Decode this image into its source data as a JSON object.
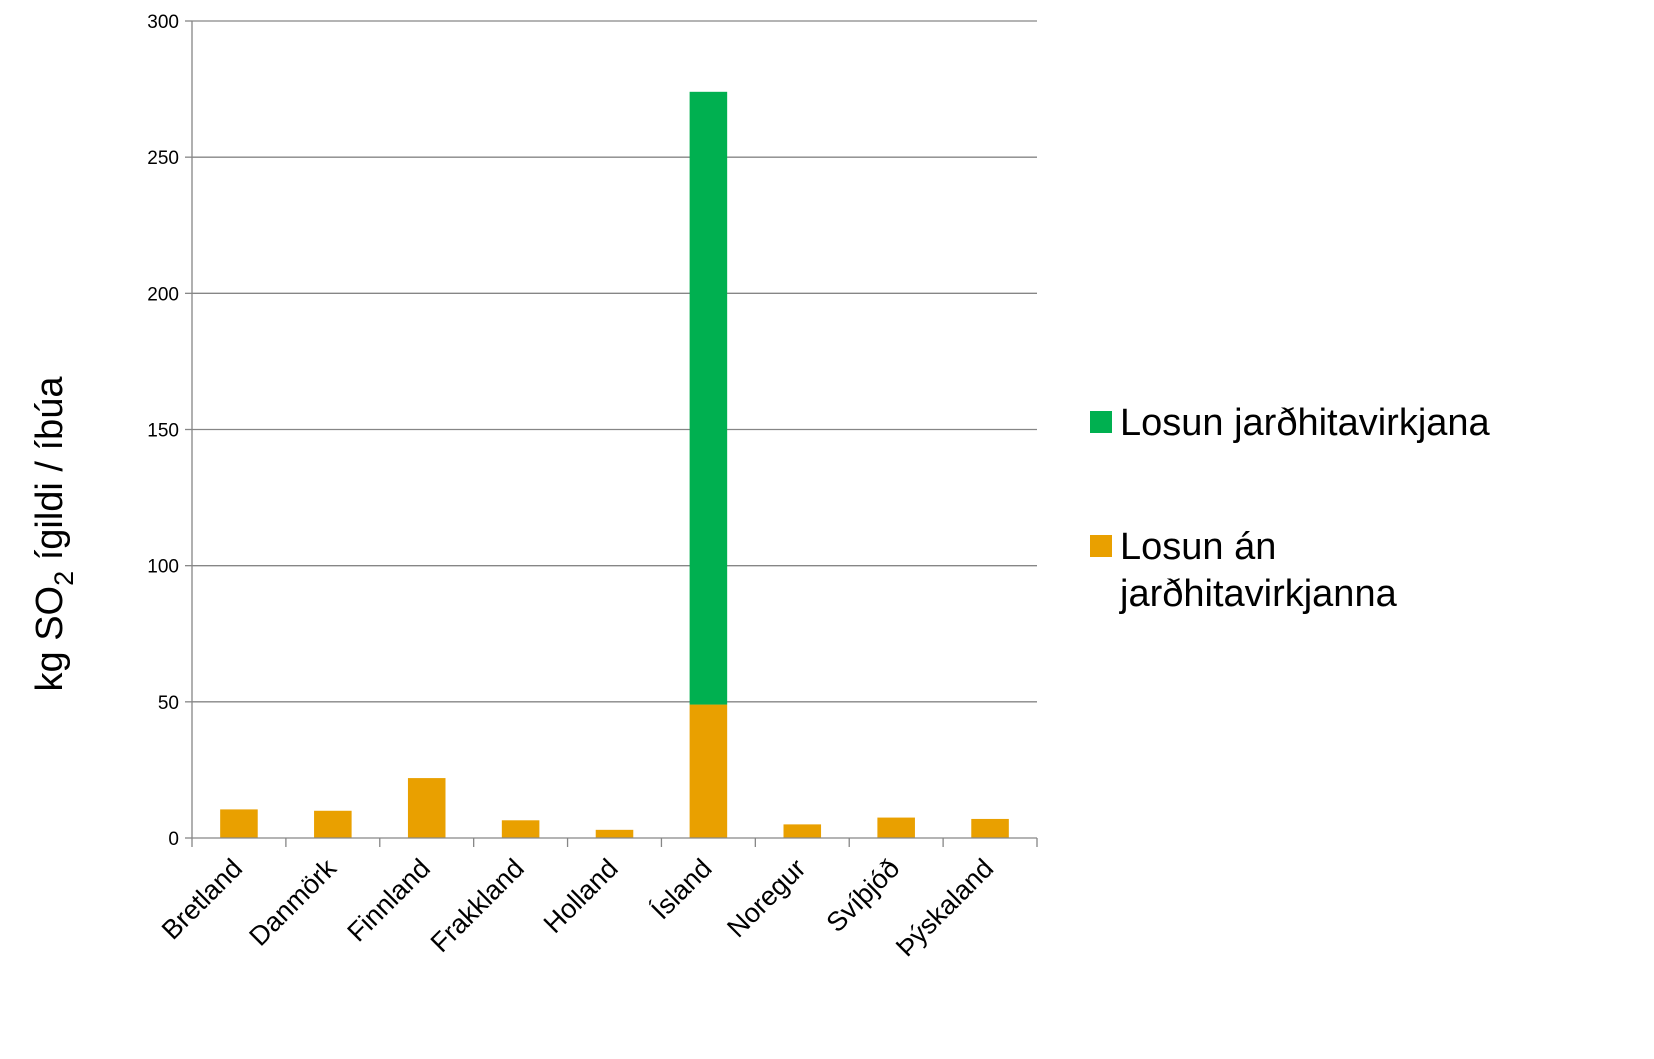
{
  "chart_data": {
    "type": "bar",
    "stacked": true,
    "categories": [
      "Bretland",
      "Danmörk",
      "Finnland",
      "Frakkland",
      "Holland",
      "Ísland",
      "Noregur",
      "Svíþjóð",
      "Þýskaland"
    ],
    "series": [
      {
        "name": "Losun án jarðhitavirkjanna",
        "legend_lines": [
          "Losun án",
          "jarðhitavirkjanna"
        ],
        "color": "#E9A000",
        "values": [
          10.5,
          10,
          22,
          6.5,
          3,
          49,
          5,
          7.5,
          7
        ]
      },
      {
        "name": "Losun jarðhitavirkjana",
        "legend_lines": [
          "Losun jarðhitavirkjana"
        ],
        "color": "#00B050",
        "values": [
          0,
          0,
          0,
          0,
          0,
          225,
          0,
          0,
          0
        ]
      }
    ],
    "ylabel": {
      "pre": "kg SO",
      "sub": "2",
      "post": " ígildi / íbúa"
    },
    "xlabel": "",
    "ylim": [
      0,
      300
    ],
    "yticks": [
      0,
      50,
      100,
      150,
      200,
      250,
      300
    ],
    "grid": true,
    "legend_position": "right",
    "legend_order": [
      1,
      0
    ]
  }
}
